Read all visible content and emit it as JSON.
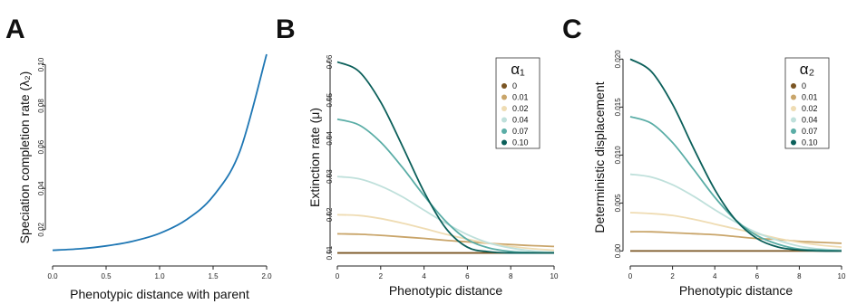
{
  "panels": [
    {
      "letter": "A"
    },
    {
      "letter": "B"
    },
    {
      "letter": "C"
    }
  ],
  "chart_data": [
    {
      "type": "line",
      "panel": "A",
      "xlabel": "Phenotypic distance with parent",
      "ylabel": "Speciation completion rate (λ₂)",
      "xlim": [
        0,
        2.0
      ],
      "ylim": [
        0.005,
        0.105
      ],
      "xticks": [
        "0.0",
        "0.5",
        "1.0",
        "1.5",
        "2.0"
      ],
      "yticks": [
        "0.02",
        "0.04",
        "0.06",
        "0.08",
        "0.10"
      ],
      "series": [
        {
          "color": "#1f77b4",
          "x": [
            0.0,
            0.25,
            0.5,
            0.75,
            1.0,
            1.25,
            1.5,
            1.75,
            2.0
          ],
          "y": [
            0.01,
            0.0107,
            0.0121,
            0.0144,
            0.0182,
            0.0248,
            0.0362,
            0.058,
            0.105
          ]
        }
      ]
    },
    {
      "type": "line",
      "panel": "B",
      "xlabel": "Phenotypic distance",
      "ylabel": "Extinction rate (μ)",
      "xlim": [
        0,
        10
      ],
      "ylim": [
        0.008,
        0.062
      ],
      "xticks": [
        "0",
        "2",
        "4",
        "6",
        "8",
        "10"
      ],
      "yticks": [
        "0.01",
        "0.02",
        "0.03",
        "0.04",
        "0.05",
        "0.06"
      ],
      "legend": {
        "title": "α₁",
        "position": "top-right"
      },
      "x": [
        0,
        1,
        2,
        3,
        4,
        5,
        6,
        7,
        8,
        9,
        10
      ],
      "series": [
        {
          "name": "0",
          "color": "#7a5523",
          "y": [
            0.01,
            0.01,
            0.01,
            0.01,
            0.01,
            0.01,
            0.01,
            0.01,
            0.01,
            0.01,
            0.01
          ]
        },
        {
          "name": "0.01",
          "color": "#c9a56a",
          "y": [
            0.015,
            0.0149,
            0.0146,
            0.0142,
            0.0138,
            0.0133,
            0.0129,
            0.0125,
            0.0122,
            0.0119,
            0.0117
          ]
        },
        {
          "name": "0.02",
          "color": "#efdcb3",
          "y": [
            0.02,
            0.0198,
            0.019,
            0.0178,
            0.0164,
            0.0149,
            0.0136,
            0.0125,
            0.0117,
            0.0111,
            0.0107
          ]
        },
        {
          "name": "0.04",
          "color": "#bfe0db",
          "y": [
            0.03,
            0.0294,
            0.0275,
            0.0247,
            0.0212,
            0.0178,
            0.0148,
            0.0126,
            0.0113,
            0.0105,
            0.0102
          ]
        },
        {
          "name": "0.07",
          "color": "#5aada6",
          "y": [
            0.045,
            0.0435,
            0.039,
            0.0324,
            0.025,
            0.0183,
            0.0135,
            0.0113,
            0.0104,
            0.0101,
            0.01
          ]
        },
        {
          "name": "0.10",
          "color": "#0b5f5a",
          "y": [
            0.06,
            0.0575,
            0.0495,
            0.038,
            0.026,
            0.0165,
            0.0115,
            0.0103,
            0.01,
            0.01,
            0.01
          ]
        }
      ]
    },
    {
      "type": "line",
      "panel": "C",
      "xlabel": "Phenotypic distance",
      "ylabel": "Deterministic displacement",
      "xlim": [
        0,
        10
      ],
      "ylim": [
        -0.001,
        0.0205
      ],
      "xticks": [
        "0",
        "2",
        "4",
        "6",
        "8",
        "10"
      ],
      "yticks": [
        "0.00",
        "0.005",
        "0.010",
        "0.015",
        "0.020"
      ],
      "legend": {
        "title": "α₂",
        "position": "top-right"
      },
      "x": [
        0,
        1,
        2,
        3,
        4,
        5,
        6,
        7,
        8,
        9,
        10
      ],
      "series": [
        {
          "name": "0",
          "color": "#7a5523",
          "y": [
            0.0,
            0.0,
            0.0,
            0.0,
            0.0,
            0.0,
            0.0,
            0.0,
            0.0,
            0.0,
            0.0
          ]
        },
        {
          "name": "0.01",
          "color": "#c9a56a",
          "y": [
            0.002,
            0.002,
            0.0019,
            0.0018,
            0.0017,
            0.0015,
            0.0013,
            0.0012,
            0.001,
            0.0009,
            0.0008
          ]
        },
        {
          "name": "0.02",
          "color": "#efdcb3",
          "y": [
            0.004,
            0.0039,
            0.0037,
            0.0033,
            0.0028,
            0.0023,
            0.0018,
            0.0013,
            0.0009,
            0.0006,
            0.0004
          ]
        },
        {
          "name": "0.04",
          "color": "#bfe0db",
          "y": [
            0.008,
            0.0077,
            0.0069,
            0.0057,
            0.0043,
            0.003,
            0.0019,
            0.0011,
            0.0005,
            0.0002,
            0.0001
          ]
        },
        {
          "name": "0.07",
          "color": "#5aada6",
          "y": [
            0.014,
            0.0133,
            0.0113,
            0.0085,
            0.0056,
            0.0032,
            0.0016,
            0.0007,
            0.0002,
            0.0001,
            0.0
          ]
        },
        {
          "name": "0.10",
          "color": "#0b5f5a",
          "y": [
            0.02,
            0.0187,
            0.0153,
            0.0107,
            0.0064,
            0.0032,
            0.0013,
            0.0004,
            0.0001,
            0.0,
            0.0
          ]
        }
      ]
    }
  ]
}
